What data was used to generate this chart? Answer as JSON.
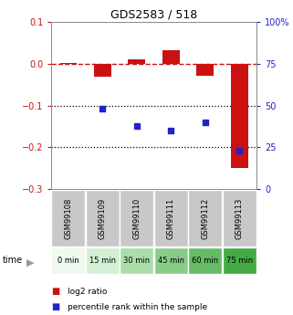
{
  "title": "GDS2583 / 518",
  "samples": [
    "GSM99108",
    "GSM99109",
    "GSM99110",
    "GSM99111",
    "GSM99112",
    "GSM99113"
  ],
  "time_labels": [
    "0 min",
    "15 min",
    "30 min",
    "45 min",
    "60 min",
    "75 min"
  ],
  "log2_ratio": [
    0.002,
    -0.03,
    0.01,
    0.032,
    -0.028,
    -0.25
  ],
  "percentile_rank": [
    null,
    48,
    38,
    35,
    40,
    23
  ],
  "ylim_left": [
    -0.3,
    0.1
  ],
  "ylim_right": [
    0,
    100
  ],
  "bar_color": "#cc1111",
  "dot_color": "#2222cc",
  "hline_color": "#cc1111",
  "dotted_line_color": "#000000",
  "title_color": "#000000",
  "left_tick_color": "#cc1111",
  "right_tick_color": "#2222cc",
  "time_colors": [
    "#eefaee",
    "#d4f0d4",
    "#aaddaa",
    "#88cc88",
    "#66bb66",
    "#44aa44"
  ],
  "sample_bg": "#c8c8c8",
  "legend_log2_label": "log2 ratio",
  "legend_pct_label": "percentile rank within the sample"
}
